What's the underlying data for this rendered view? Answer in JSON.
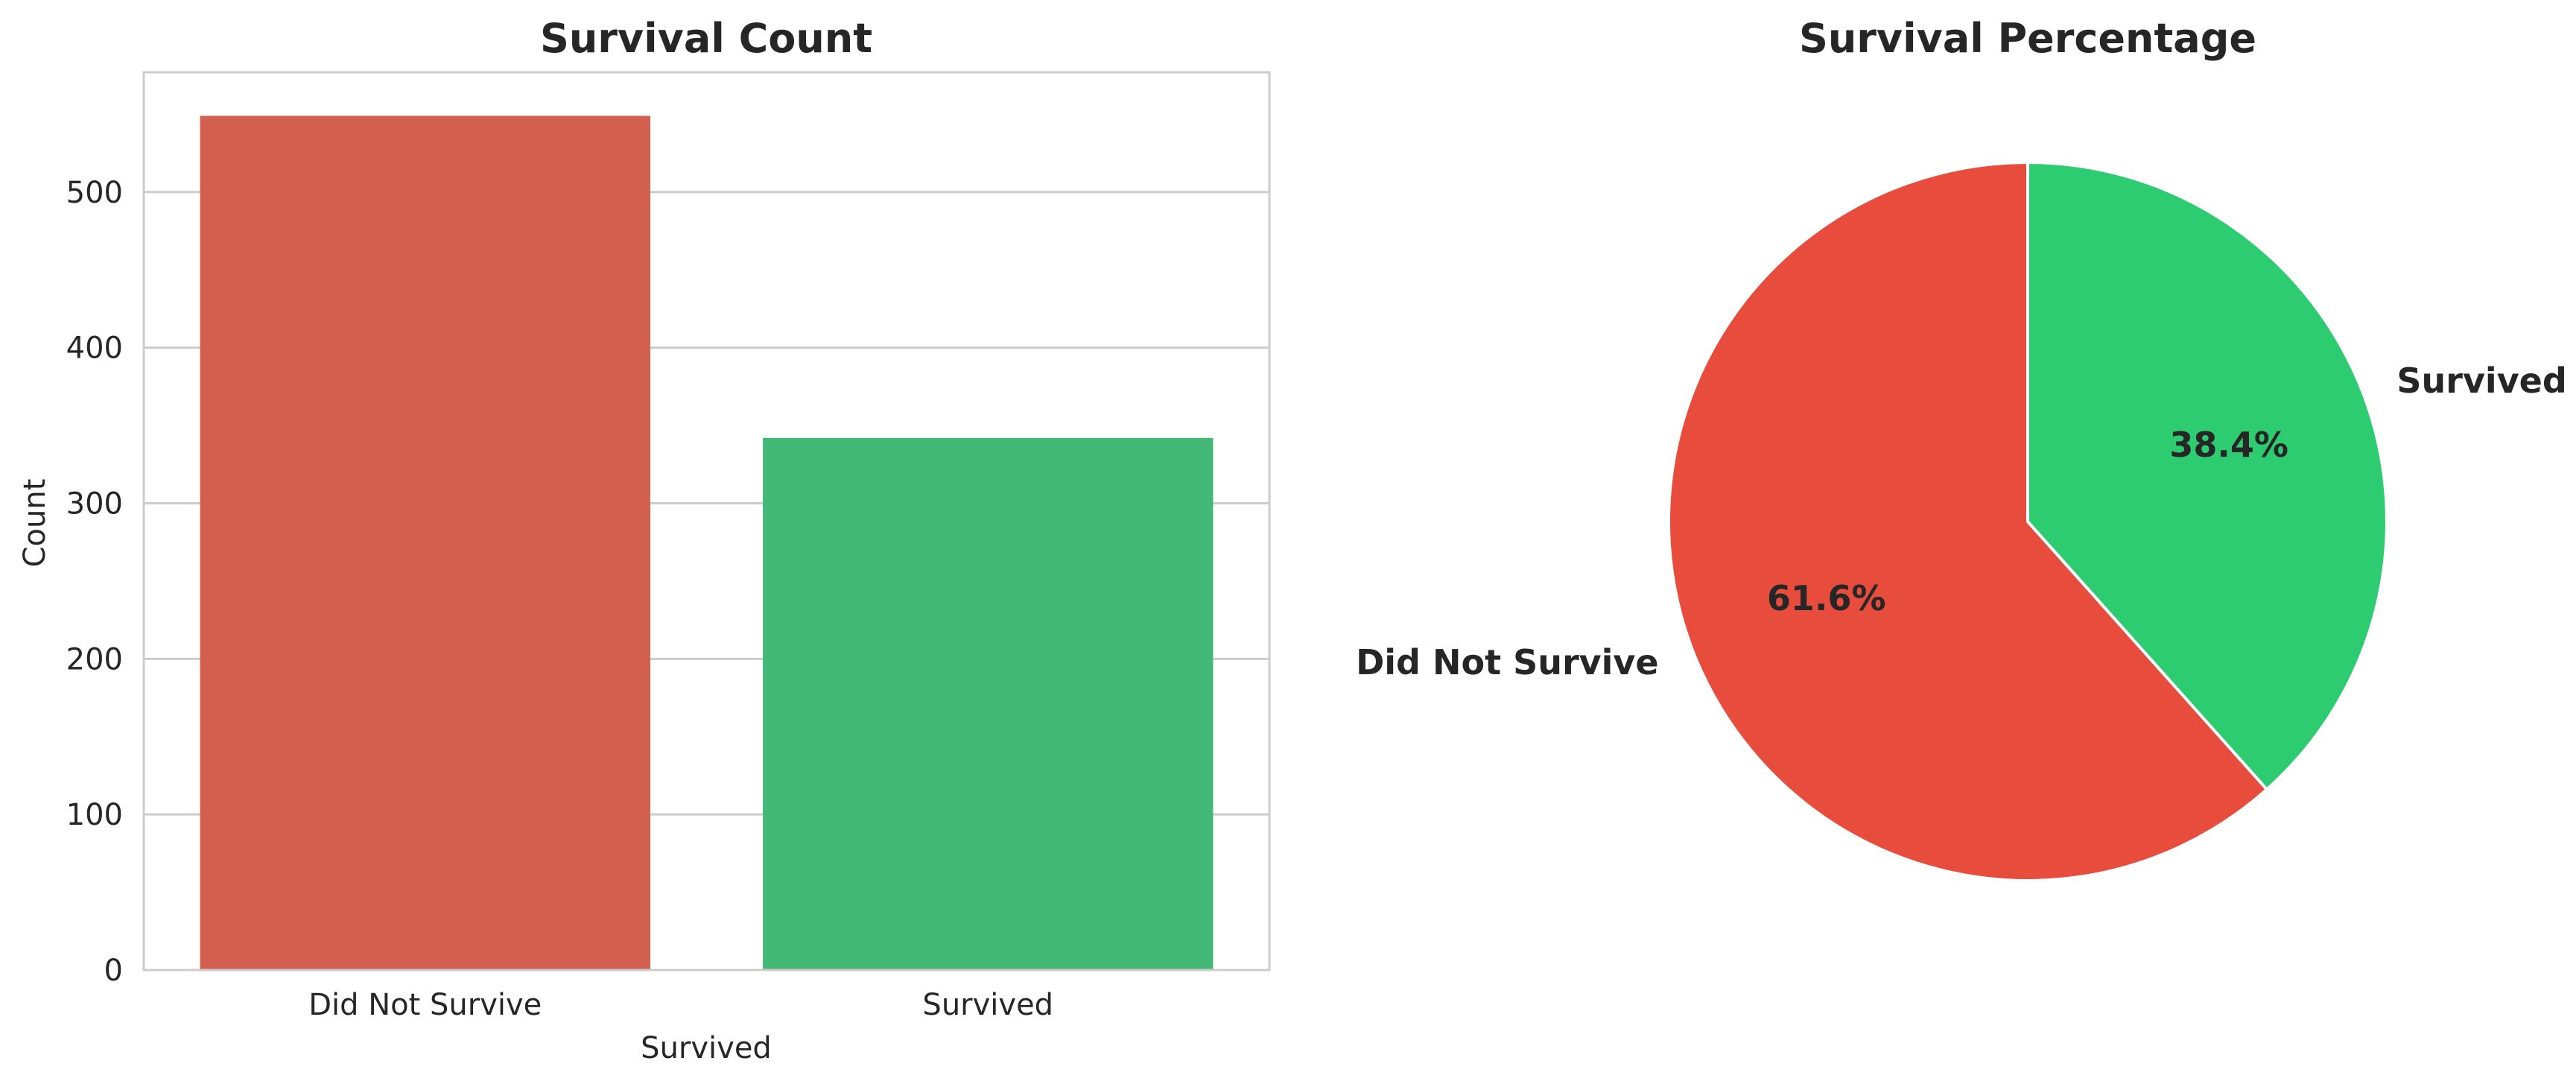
{
  "chart_data": [
    {
      "type": "bar",
      "title": "Survival Count",
      "xlabel": "Survived",
      "ylabel": "Count",
      "categories": [
        "Did Not Survive",
        "Survived"
      ],
      "values": [
        549,
        342
      ],
      "ylim": [
        0,
        577
      ],
      "yticks": [
        0,
        100,
        200,
        300,
        400,
        500
      ],
      "colors": [
        "#d35f51",
        "#44b977"
      ],
      "grid": true
    },
    {
      "type": "pie",
      "title": "Survival Percentage",
      "labels": [
        "Did Not Survive",
        "Survived"
      ],
      "values": [
        61.6,
        38.4
      ],
      "pct_labels": [
        "61.6%",
        "38.4%"
      ],
      "colors": [
        "#e74c3c",
        "#2ecc71"
      ]
    }
  ]
}
